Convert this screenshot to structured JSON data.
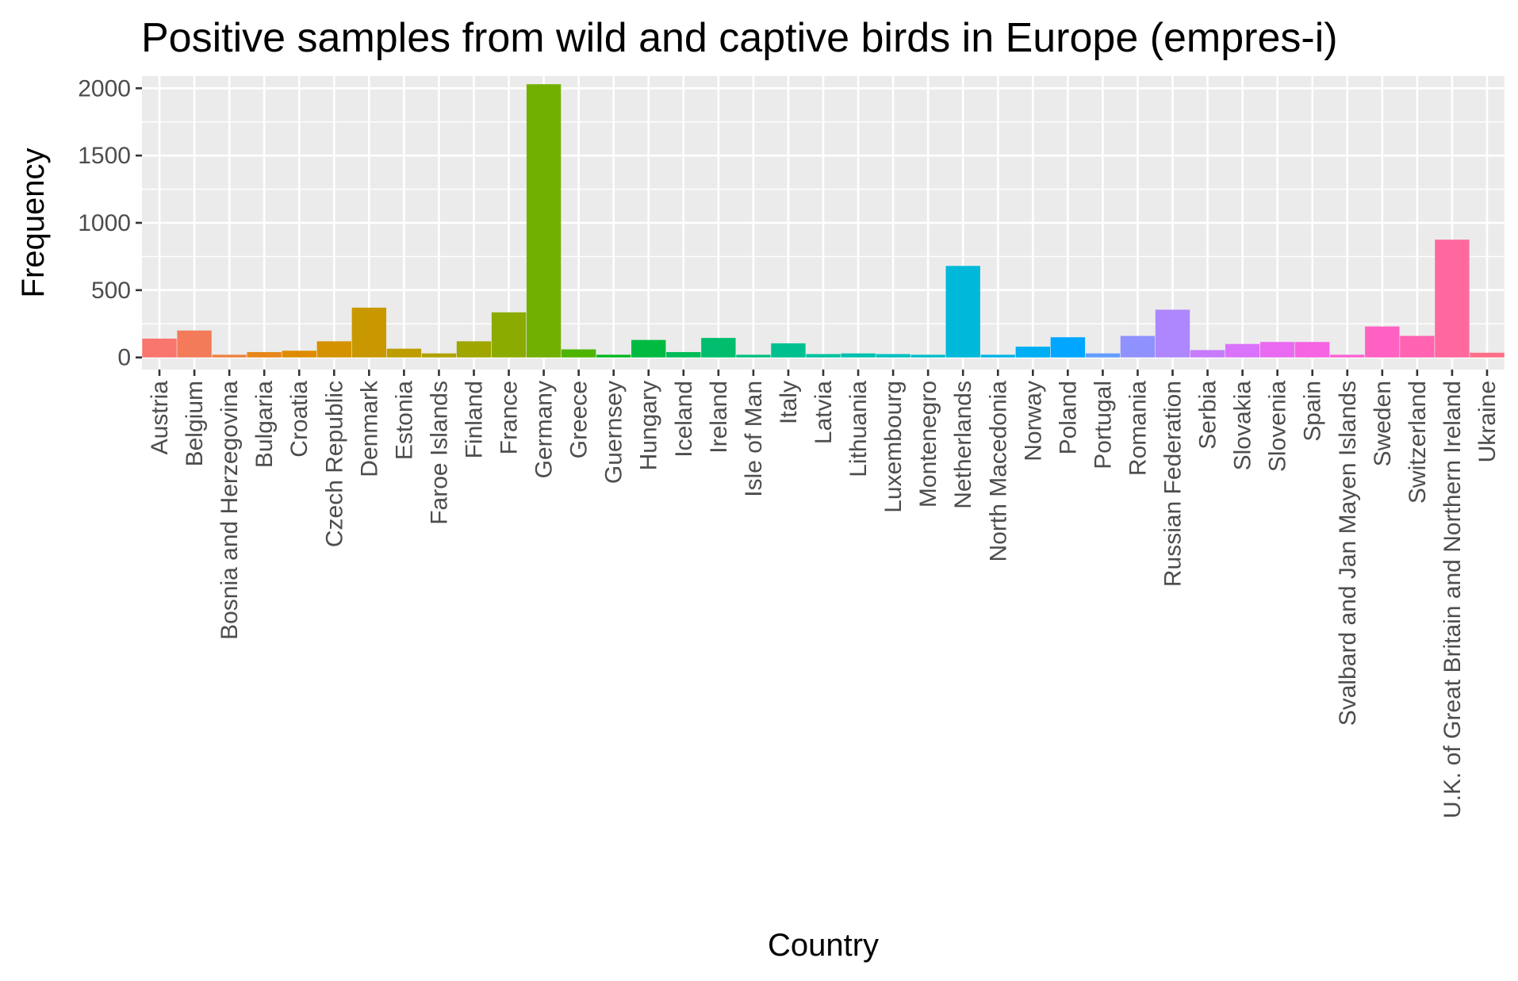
{
  "chart_data": {
    "type": "bar",
    "title": "Positive samples from wild and captive birds in Europe (empres-i)",
    "xlabel": "Country",
    "ylabel": "Frequency",
    "ylim": [
      -90,
      2090
    ],
    "yticks": [
      0,
      500,
      1000,
      1500,
      2000
    ],
    "grid": true,
    "legend": "none",
    "categories": [
      "Austria",
      "Belgium",
      "Bosnia and Herzegovina",
      "Bulgaria",
      "Croatia",
      "Czech Republic",
      "Denmark",
      "Estonia",
      "Faroe Islands",
      "Finland",
      "France",
      "Germany",
      "Greece",
      "Guernsey",
      "Hungary",
      "Iceland",
      "Ireland",
      "Isle of Man",
      "Italy",
      "Latvia",
      "Lithuania",
      "Luxembourg",
      "Montenegro",
      "Netherlands",
      "North Macedonia",
      "Norway",
      "Poland",
      "Portugal",
      "Romania",
      "Russian Federation",
      "Serbia",
      "Slovakia",
      "Slovenia",
      "Spain",
      "Svalbard and Jan Mayen Islands",
      "Sweden",
      "Switzerland",
      "U.K. of Great Britain and Northern Ireland",
      "Ukraine"
    ],
    "values": [
      140,
      200,
      20,
      40,
      50,
      120,
      370,
      65,
      30,
      120,
      335,
      2030,
      60,
      20,
      130,
      40,
      145,
      20,
      105,
      25,
      30,
      25,
      20,
      680,
      20,
      80,
      150,
      30,
      160,
      355,
      55,
      100,
      115,
      115,
      20,
      230,
      160,
      875,
      35
    ],
    "colors": [
      "#F8766D",
      "#F37B59",
      "#ED8141",
      "#E7861B",
      "#DF8B00",
      "#D49200",
      "#C99800",
      "#BD9D00",
      "#AFA100",
      "#9FA600",
      "#8CAB00",
      "#72B000",
      "#4FB400",
      "#00B81F",
      "#00BA42",
      "#00BC59",
      "#00BE6D",
      "#00BF7F",
      "#00C08F",
      "#00C19F",
      "#00C0AF",
      "#00BFBE",
      "#00BDCC",
      "#00B9DA",
      "#00B4E7",
      "#00AEF3",
      "#00A6FF",
      "#619CFF",
      "#8F91FF",
      "#AE87FF",
      "#C77CFF",
      "#DA72FB",
      "#E96AF0",
      "#F464E3",
      "#FC61D4",
      "#FF61C3",
      "#FF63B1",
      "#FF689F",
      "#FD6F87"
    ]
  }
}
